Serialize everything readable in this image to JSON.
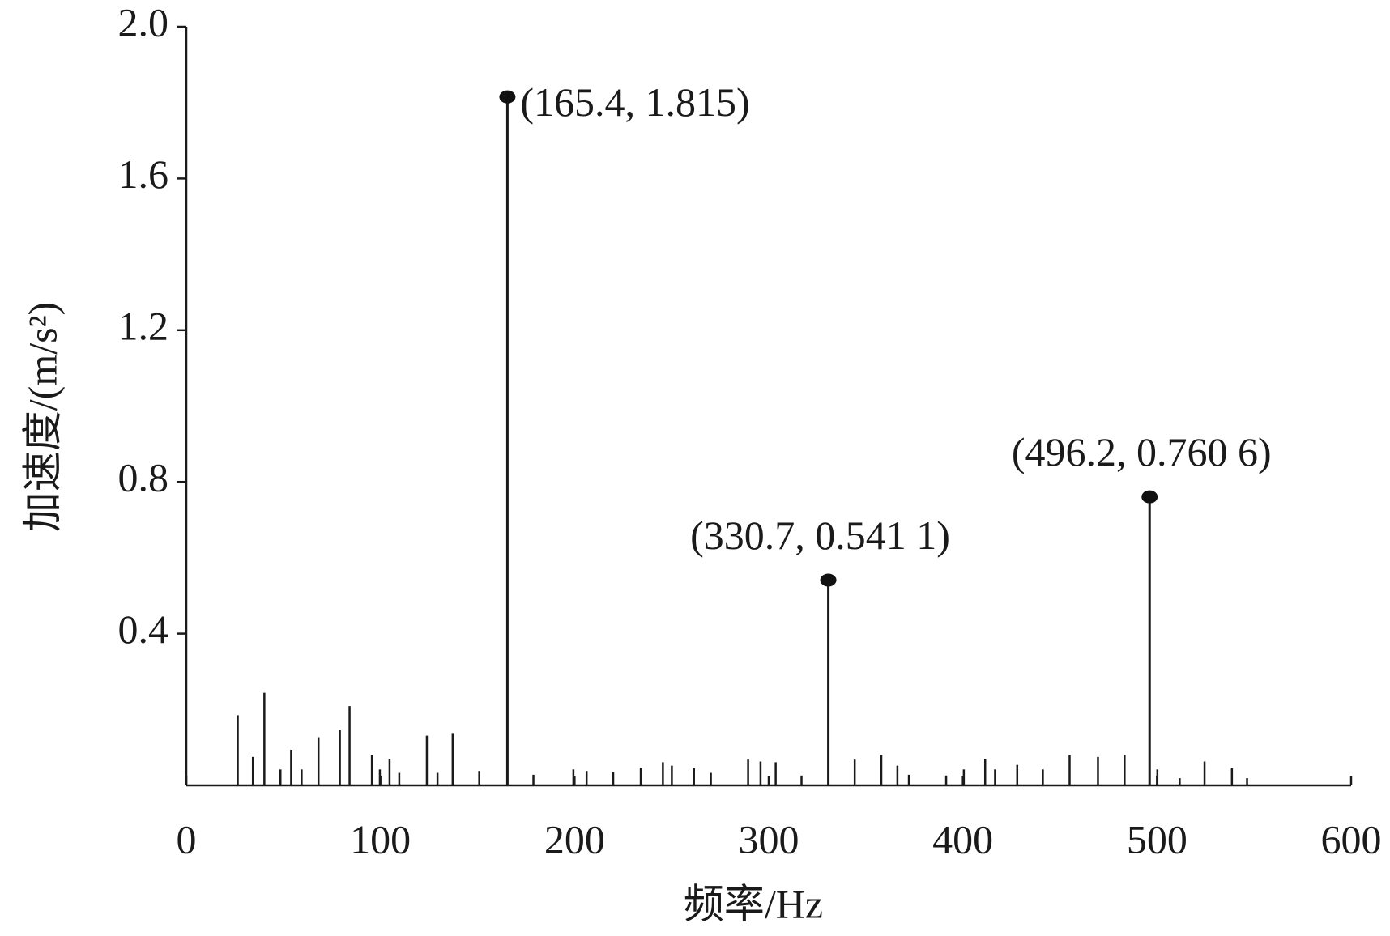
{
  "chart_data": {
    "type": "stem",
    "x_label": "频率/Hz",
    "y_label": "加速度/(m/s²)",
    "x": [
      26.5,
      34.3,
      40.2,
      48.5,
      54,
      59.4,
      68.1,
      79.1,
      84.1,
      95.6,
      99.7,
      104.7,
      109.7,
      123.9,
      129.4,
      137.2,
      150.9,
      165.4,
      178.8,
      199.4,
      206.2,
      219.9,
      234.1,
      245.5,
      250.1,
      261.5,
      270.2,
      289.4,
      295.8,
      303.6,
      316.9,
      330.7,
      344.3,
      358,
      366.3,
      372.2,
      391.4,
      400.5,
      411.5,
      416.6,
      428,
      441.2,
      455,
      469.6,
      483.3,
      496.2,
      500.2,
      511.7,
      524.5,
      538.6,
      546.4
    ],
    "values": [
      0.185,
      0.075,
      0.244,
      0.042,
      0.094,
      0.042,
      0.127,
      0.146,
      0.209,
      0.08,
      0.042,
      0.07,
      0.033,
      0.131,
      0.033,
      0.138,
      0.038,
      1.815,
      0.028,
      0.042,
      0.038,
      0.035,
      0.047,
      0.061,
      0.052,
      0.045,
      0.033,
      0.068,
      0.063,
      0.061,
      0.026,
      0.5411,
      0.068,
      0.08,
      0.052,
      0.028,
      0.026,
      0.042,
      0.07,
      0.042,
      0.054,
      0.042,
      0.08,
      0.075,
      0.08,
      0.7606,
      0.042,
      0.019,
      0.063,
      0.045,
      0.019
    ],
    "color": "#1a1a1a",
    "annotations": [
      {
        "x": 165.4,
        "y": 1.815,
        "label": "(165.4, 1.815)"
      },
      {
        "x": 330.7,
        "y": 0.5411,
        "label": "(330.7, 0.541 1)"
      },
      {
        "x": 496.2,
        "y": 0.7606,
        "label": "(496.2, 0.760 6)"
      }
    ],
    "xlim": [
      0,
      600
    ],
    "xticks": [
      0,
      100,
      200,
      300,
      400,
      500,
      600
    ],
    "ylim": [
      0,
      2
    ],
    "yticks": [
      0.4,
      0.8,
      1.2,
      1.6,
      {
        "value": 2,
        "label": "2.0"
      }
    ]
  }
}
